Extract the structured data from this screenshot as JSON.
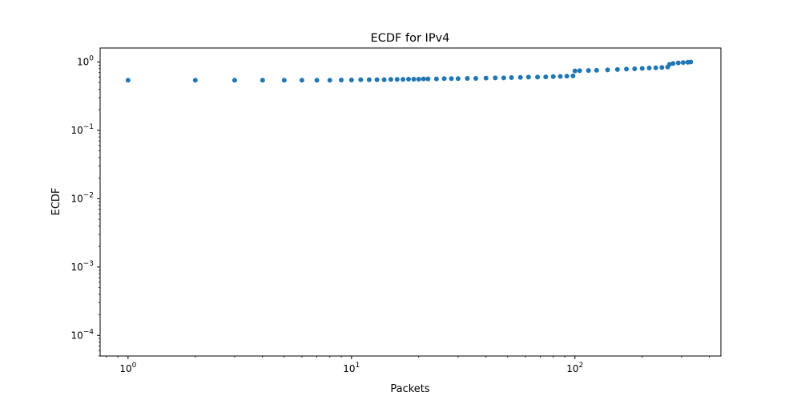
{
  "chart_data": {
    "type": "scatter",
    "title": "ECDF for IPv4",
    "xlabel": "Packets",
    "ylabel": "ECDF",
    "xscale": "log",
    "yscale": "log",
    "xlim": [
      0.75,
      450
    ],
    "ylim": [
      5e-05,
      1.6
    ],
    "grid": false,
    "legend": "none",
    "marker_color": "#1f77b4",
    "x_ticks": [
      {
        "base": "10",
        "exp": "0",
        "value": 1
      },
      {
        "base": "10",
        "exp": "1",
        "value": 10
      },
      {
        "base": "10",
        "exp": "2",
        "value": 100
      }
    ],
    "y_ticks": [
      {
        "base": "10",
        "exp": "0",
        "value": 1
      },
      {
        "base": "10",
        "exp": "−1",
        "value": 0.1
      },
      {
        "base": "10",
        "exp": "−2",
        "value": 0.01
      },
      {
        "base": "10",
        "exp": "−3",
        "value": 0.001
      },
      {
        "base": "10",
        "exp": "−4",
        "value": 0.0001
      }
    ],
    "series": [
      {
        "x": [
          1,
          2,
          3,
          4,
          5,
          6,
          7,
          8,
          9,
          10,
          11,
          12,
          13,
          14,
          15,
          16,
          17,
          18,
          19,
          20,
          21,
          22,
          24,
          26,
          28,
          30,
          33,
          36,
          40,
          44,
          48,
          52,
          57,
          62,
          68,
          74,
          80,
          86,
          92,
          98,
          100,
          105,
          115,
          125,
          140,
          155,
          170,
          185,
          200,
          215,
          230,
          245,
          260,
          265,
          275,
          290,
          305,
          320,
          330
        ],
        "y": [
          0.54,
          0.54,
          0.54,
          0.54,
          0.54,
          0.54,
          0.54,
          0.54,
          0.545,
          0.545,
          0.55,
          0.55,
          0.55,
          0.55,
          0.555,
          0.555,
          0.555,
          0.56,
          0.56,
          0.56,
          0.565,
          0.565,
          0.565,
          0.57,
          0.57,
          0.57,
          0.575,
          0.575,
          0.58,
          0.585,
          0.585,
          0.59,
          0.595,
          0.6,
          0.6,
          0.605,
          0.61,
          0.615,
          0.62,
          0.625,
          0.74,
          0.745,
          0.75,
          0.755,
          0.765,
          0.775,
          0.785,
          0.795,
          0.805,
          0.815,
          0.82,
          0.83,
          0.84,
          0.92,
          0.95,
          0.97,
          0.98,
          0.99,
          1.0
        ]
      }
    ]
  }
}
